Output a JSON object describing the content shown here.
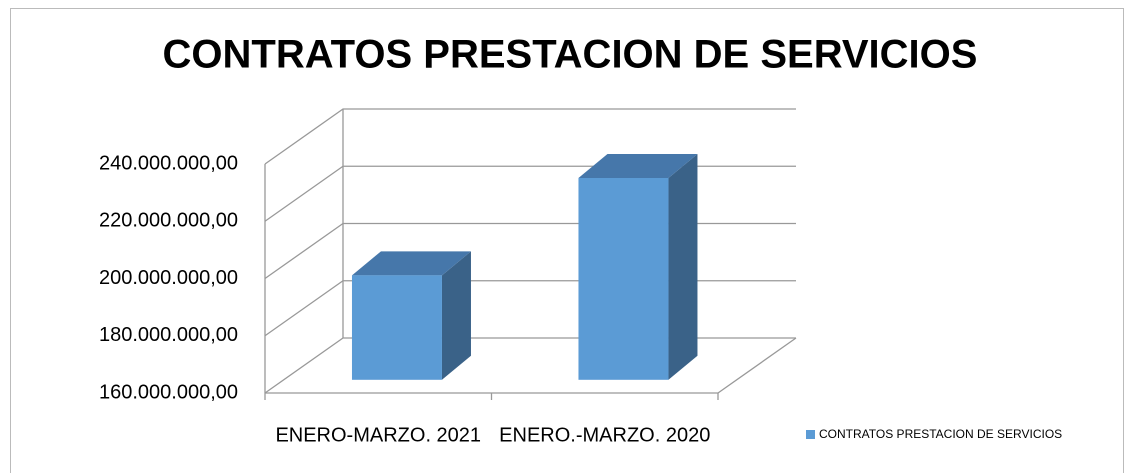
{
  "chart_data": {
    "type": "bar3d",
    "title": "CONTRATOS PRESTACION DE SERVICIOS",
    "categories": [
      "ENERO-MARZO. 2021",
      "ENERO.-MARZO. 2020"
    ],
    "series": [
      {
        "name": "CONTRATOS PRESTACION DE SERVICIOS",
        "color": "#5b9bd5",
        "values": [
          196500000,
          230500000
        ]
      }
    ],
    "ylim": [
      160000000,
      240000000
    ],
    "yticks": [
      {
        "value": 160000000,
        "label": "160.000.000,00"
      },
      {
        "value": 180000000,
        "label": "180.000.000,00"
      },
      {
        "value": 200000000,
        "label": "200.000.000,00"
      },
      {
        "value": 220000000,
        "label": "220.000.000,00"
      },
      {
        "value": 240000000,
        "label": "240.000.000,00"
      }
    ],
    "grid": true,
    "legend": "bottom-right"
  }
}
